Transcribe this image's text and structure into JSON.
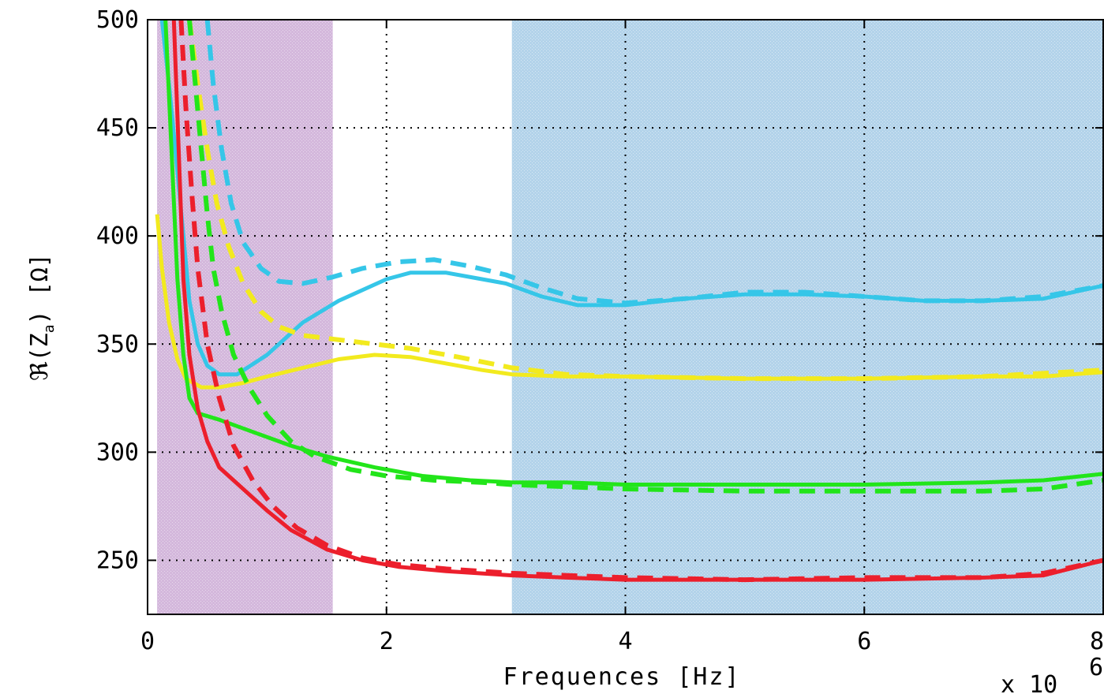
{
  "chart_data": {
    "type": "line",
    "title": "",
    "xlabel": "Frequences [Hz]",
    "ylabel": "ℜ(Z_a) [Ω]",
    "ylabel_main": "ℜ(Z",
    "ylabel_sub": "a",
    "ylabel_unit": ") [Ω]",
    "x_multiplier": "x 10",
    "x_multiplier_exp": "6",
    "xlim": [
      0,
      8
    ],
    "ylim": [
      225,
      500
    ],
    "xticks": [
      0,
      2,
      4,
      6,
      8
    ],
    "xtick_labels": [
      "0",
      "2",
      "4",
      "6",
      "8"
    ],
    "yticks": [
      250,
      300,
      350,
      400,
      450,
      500
    ],
    "ytick_labels": [
      "250",
      "300",
      "350",
      "400",
      "450",
      "500"
    ],
    "grid": true,
    "legend": "none",
    "shaded_regions": [
      {
        "x0": 0.08,
        "x1": 1.55,
        "color": "#d4b8dc"
      },
      {
        "x0": 3.05,
        "x1": 8.0,
        "color": "#b3d3ea"
      }
    ],
    "series": [
      {
        "color": "#35c6e8",
        "style": "solid",
        "points": [
          [
            0.12,
            500
          ],
          [
            0.18,
            470
          ],
          [
            0.25,
            430
          ],
          [
            0.3,
            400
          ],
          [
            0.35,
            370
          ],
          [
            0.42,
            350
          ],
          [
            0.5,
            340
          ],
          [
            0.6,
            336
          ],
          [
            0.75,
            336
          ],
          [
            1.0,
            345
          ],
          [
            1.3,
            360
          ],
          [
            1.6,
            370
          ],
          [
            2.0,
            380
          ],
          [
            2.2,
            383
          ],
          [
            2.5,
            383
          ],
          [
            2.8,
            380
          ],
          [
            3.0,
            378
          ],
          [
            3.3,
            372
          ],
          [
            3.6,
            368
          ],
          [
            4.0,
            368
          ],
          [
            4.5,
            371
          ],
          [
            5.0,
            373
          ],
          [
            5.5,
            373
          ],
          [
            6.0,
            372
          ],
          [
            6.5,
            370
          ],
          [
            7.0,
            370
          ],
          [
            7.5,
            371
          ],
          [
            8.0,
            377
          ]
        ]
      },
      {
        "color": "#35c6e8",
        "style": "dashed",
        "points": [
          [
            0.5,
            500
          ],
          [
            0.55,
            470
          ],
          [
            0.62,
            440
          ],
          [
            0.7,
            415
          ],
          [
            0.8,
            397
          ],
          [
            0.95,
            385
          ],
          [
            1.1,
            379
          ],
          [
            1.3,
            378
          ],
          [
            1.55,
            381
          ],
          [
            1.8,
            385
          ],
          [
            2.1,
            388
          ],
          [
            2.4,
            389
          ],
          [
            2.7,
            386
          ],
          [
            3.0,
            382
          ],
          [
            3.3,
            376
          ],
          [
            3.6,
            371
          ],
          [
            4.0,
            369
          ],
          [
            4.5,
            371
          ],
          [
            5.0,
            374
          ],
          [
            5.5,
            374
          ],
          [
            6.0,
            372
          ],
          [
            6.5,
            370
          ],
          [
            7.0,
            370
          ],
          [
            7.5,
            372
          ],
          [
            8.0,
            377
          ]
        ]
      },
      {
        "color": "#f2ea1e",
        "style": "solid",
        "points": [
          [
            0.08,
            410
          ],
          [
            0.12,
            385
          ],
          [
            0.18,
            360
          ],
          [
            0.25,
            343
          ],
          [
            0.32,
            334
          ],
          [
            0.45,
            330
          ],
          [
            0.6,
            330
          ],
          [
            0.8,
            332
          ],
          [
            1.0,
            335
          ],
          [
            1.3,
            339
          ],
          [
            1.6,
            343
          ],
          [
            1.9,
            345
          ],
          [
            2.2,
            344
          ],
          [
            2.5,
            341
          ],
          [
            2.8,
            338
          ],
          [
            3.05,
            336
          ],
          [
            3.5,
            335
          ],
          [
            4.0,
            335
          ],
          [
            5.0,
            334
          ],
          [
            6.0,
            334
          ],
          [
            7.0,
            335
          ],
          [
            7.5,
            335
          ],
          [
            8.0,
            337
          ]
        ]
      },
      {
        "color": "#f2ea1e",
        "style": "dashed",
        "points": [
          [
            0.35,
            500
          ],
          [
            0.42,
            470
          ],
          [
            0.5,
            440
          ],
          [
            0.58,
            415
          ],
          [
            0.68,
            395
          ],
          [
            0.8,
            378
          ],
          [
            0.95,
            365
          ],
          [
            1.1,
            358
          ],
          [
            1.3,
            354
          ],
          [
            1.6,
            352
          ],
          [
            1.9,
            350
          ],
          [
            2.2,
            348
          ],
          [
            2.6,
            344
          ],
          [
            3.05,
            339
          ],
          [
            3.5,
            336
          ],
          [
            4.0,
            335
          ],
          [
            5.0,
            334
          ],
          [
            6.0,
            334
          ],
          [
            7.0,
            335
          ],
          [
            8.0,
            338
          ]
        ]
      },
      {
        "color": "#22e51a",
        "style": "solid",
        "points": [
          [
            0.15,
            500
          ],
          [
            0.2,
            440
          ],
          [
            0.25,
            380
          ],
          [
            0.3,
            345
          ],
          [
            0.35,
            325
          ],
          [
            0.42,
            318
          ],
          [
            0.6,
            315
          ],
          [
            0.9,
            309
          ],
          [
            1.2,
            303
          ],
          [
            1.5,
            298
          ],
          [
            1.9,
            293
          ],
          [
            2.3,
            289
          ],
          [
            2.7,
            287
          ],
          [
            3.05,
            286
          ],
          [
            3.5,
            286
          ],
          [
            4.0,
            285
          ],
          [
            5.0,
            285
          ],
          [
            6.0,
            285
          ],
          [
            7.0,
            286
          ],
          [
            7.5,
            287
          ],
          [
            8.0,
            290
          ]
        ]
      },
      {
        "color": "#22e51a",
        "style": "dashed",
        "points": [
          [
            0.35,
            500
          ],
          [
            0.4,
            470
          ],
          [
            0.45,
            440
          ],
          [
            0.5,
            410
          ],
          [
            0.55,
            385
          ],
          [
            0.62,
            365
          ],
          [
            0.72,
            345
          ],
          [
            0.85,
            330
          ],
          [
            1.0,
            317
          ],
          [
            1.2,
            305
          ],
          [
            1.4,
            298
          ],
          [
            1.7,
            292
          ],
          [
            2.0,
            289
          ],
          [
            2.4,
            287
          ],
          [
            2.8,
            286
          ],
          [
            3.05,
            285
          ],
          [
            3.5,
            284
          ],
          [
            4.0,
            283
          ],
          [
            5.0,
            282
          ],
          [
            6.0,
            282
          ],
          [
            7.0,
            282
          ],
          [
            7.5,
            283
          ],
          [
            8.0,
            287
          ]
        ]
      },
      {
        "color": "#ec1f2c",
        "style": "solid",
        "points": [
          [
            0.22,
            500
          ],
          [
            0.26,
            440
          ],
          [
            0.3,
            380
          ],
          [
            0.35,
            345
          ],
          [
            0.42,
            320
          ],
          [
            0.5,
            305
          ],
          [
            0.6,
            293
          ],
          [
            0.8,
            283
          ],
          [
            1.0,
            273
          ],
          [
            1.2,
            264
          ],
          [
            1.5,
            255
          ],
          [
            1.8,
            250
          ],
          [
            2.1,
            247
          ],
          [
            2.5,
            245
          ],
          [
            3.05,
            243
          ],
          [
            3.5,
            242
          ],
          [
            4.0,
            241
          ],
          [
            5.0,
            241
          ],
          [
            6.0,
            241
          ],
          [
            7.0,
            242
          ],
          [
            7.5,
            243
          ],
          [
            8.0,
            250
          ]
        ]
      },
      {
        "color": "#ec1f2c",
        "style": "dashed",
        "points": [
          [
            0.28,
            500
          ],
          [
            0.32,
            460
          ],
          [
            0.37,
            420
          ],
          [
            0.42,
            385
          ],
          [
            0.5,
            350
          ],
          [
            0.6,
            325
          ],
          [
            0.72,
            303
          ],
          [
            0.88,
            287
          ],
          [
            1.05,
            275
          ],
          [
            1.25,
            265
          ],
          [
            1.5,
            257
          ],
          [
            1.8,
            251
          ],
          [
            2.1,
            248
          ],
          [
            2.5,
            246
          ],
          [
            3.05,
            244
          ],
          [
            3.5,
            243
          ],
          [
            4.0,
            242
          ],
          [
            5.0,
            241
          ],
          [
            6.0,
            242
          ],
          [
            7.0,
            242
          ],
          [
            7.5,
            244
          ],
          [
            8.0,
            250
          ]
        ]
      }
    ]
  }
}
